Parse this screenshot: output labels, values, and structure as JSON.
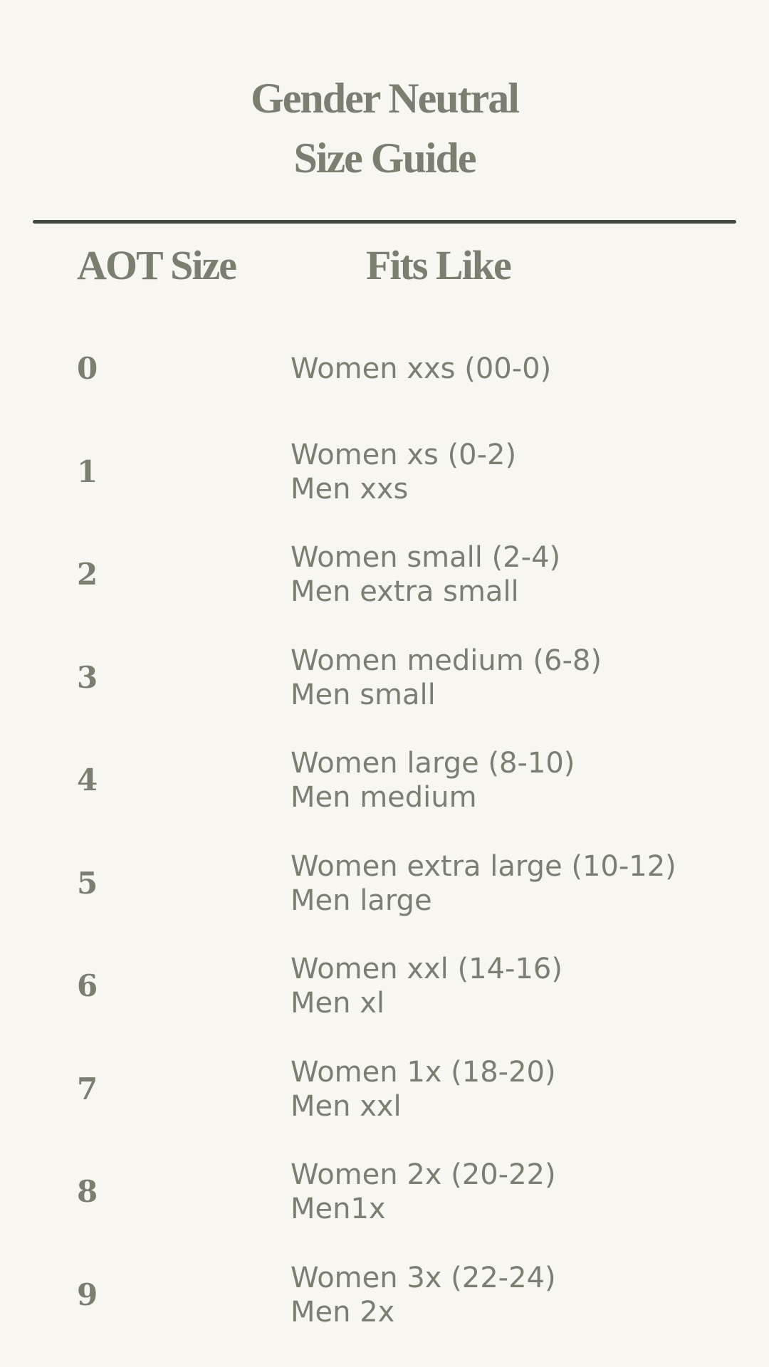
{
  "title": {
    "line1": "Gender Neutral",
    "line2": "Size Guide"
  },
  "headers": {
    "size": "AOT Size",
    "fits": "Fits Like"
  },
  "rows": [
    {
      "size": "0",
      "lines": [
        "Women xxs (00-0)"
      ]
    },
    {
      "size": "1",
      "lines": [
        "Women xs (0-2)",
        "Men xxs"
      ]
    },
    {
      "size": "2",
      "lines": [
        "Women small (2-4)",
        "Men extra small"
      ]
    },
    {
      "size": "3",
      "lines": [
        "Women medium (6-8)",
        "Men small"
      ]
    },
    {
      "size": "4",
      "lines": [
        "Women large (8-10)",
        "Men medium"
      ]
    },
    {
      "size": "5",
      "lines": [
        "Women extra large (10-12)",
        "Men large"
      ]
    },
    {
      "size": "6",
      "lines": [
        "Women xxl (14-16)",
        "Men xl"
      ]
    },
    {
      "size": "7",
      "lines": [
        "Women 1x (18-20)",
        "Men xxl"
      ]
    },
    {
      "size": "8",
      "lines": [
        "Women 2x (20-22)",
        "Men1x"
      ]
    },
    {
      "size": "9",
      "lines": [
        "Women 3x (22-24)",
        "Men 2x"
      ]
    }
  ],
  "colors": {
    "background": "#f7f6f0",
    "text": "#7a7f72",
    "rule": "#3f4a3c"
  }
}
